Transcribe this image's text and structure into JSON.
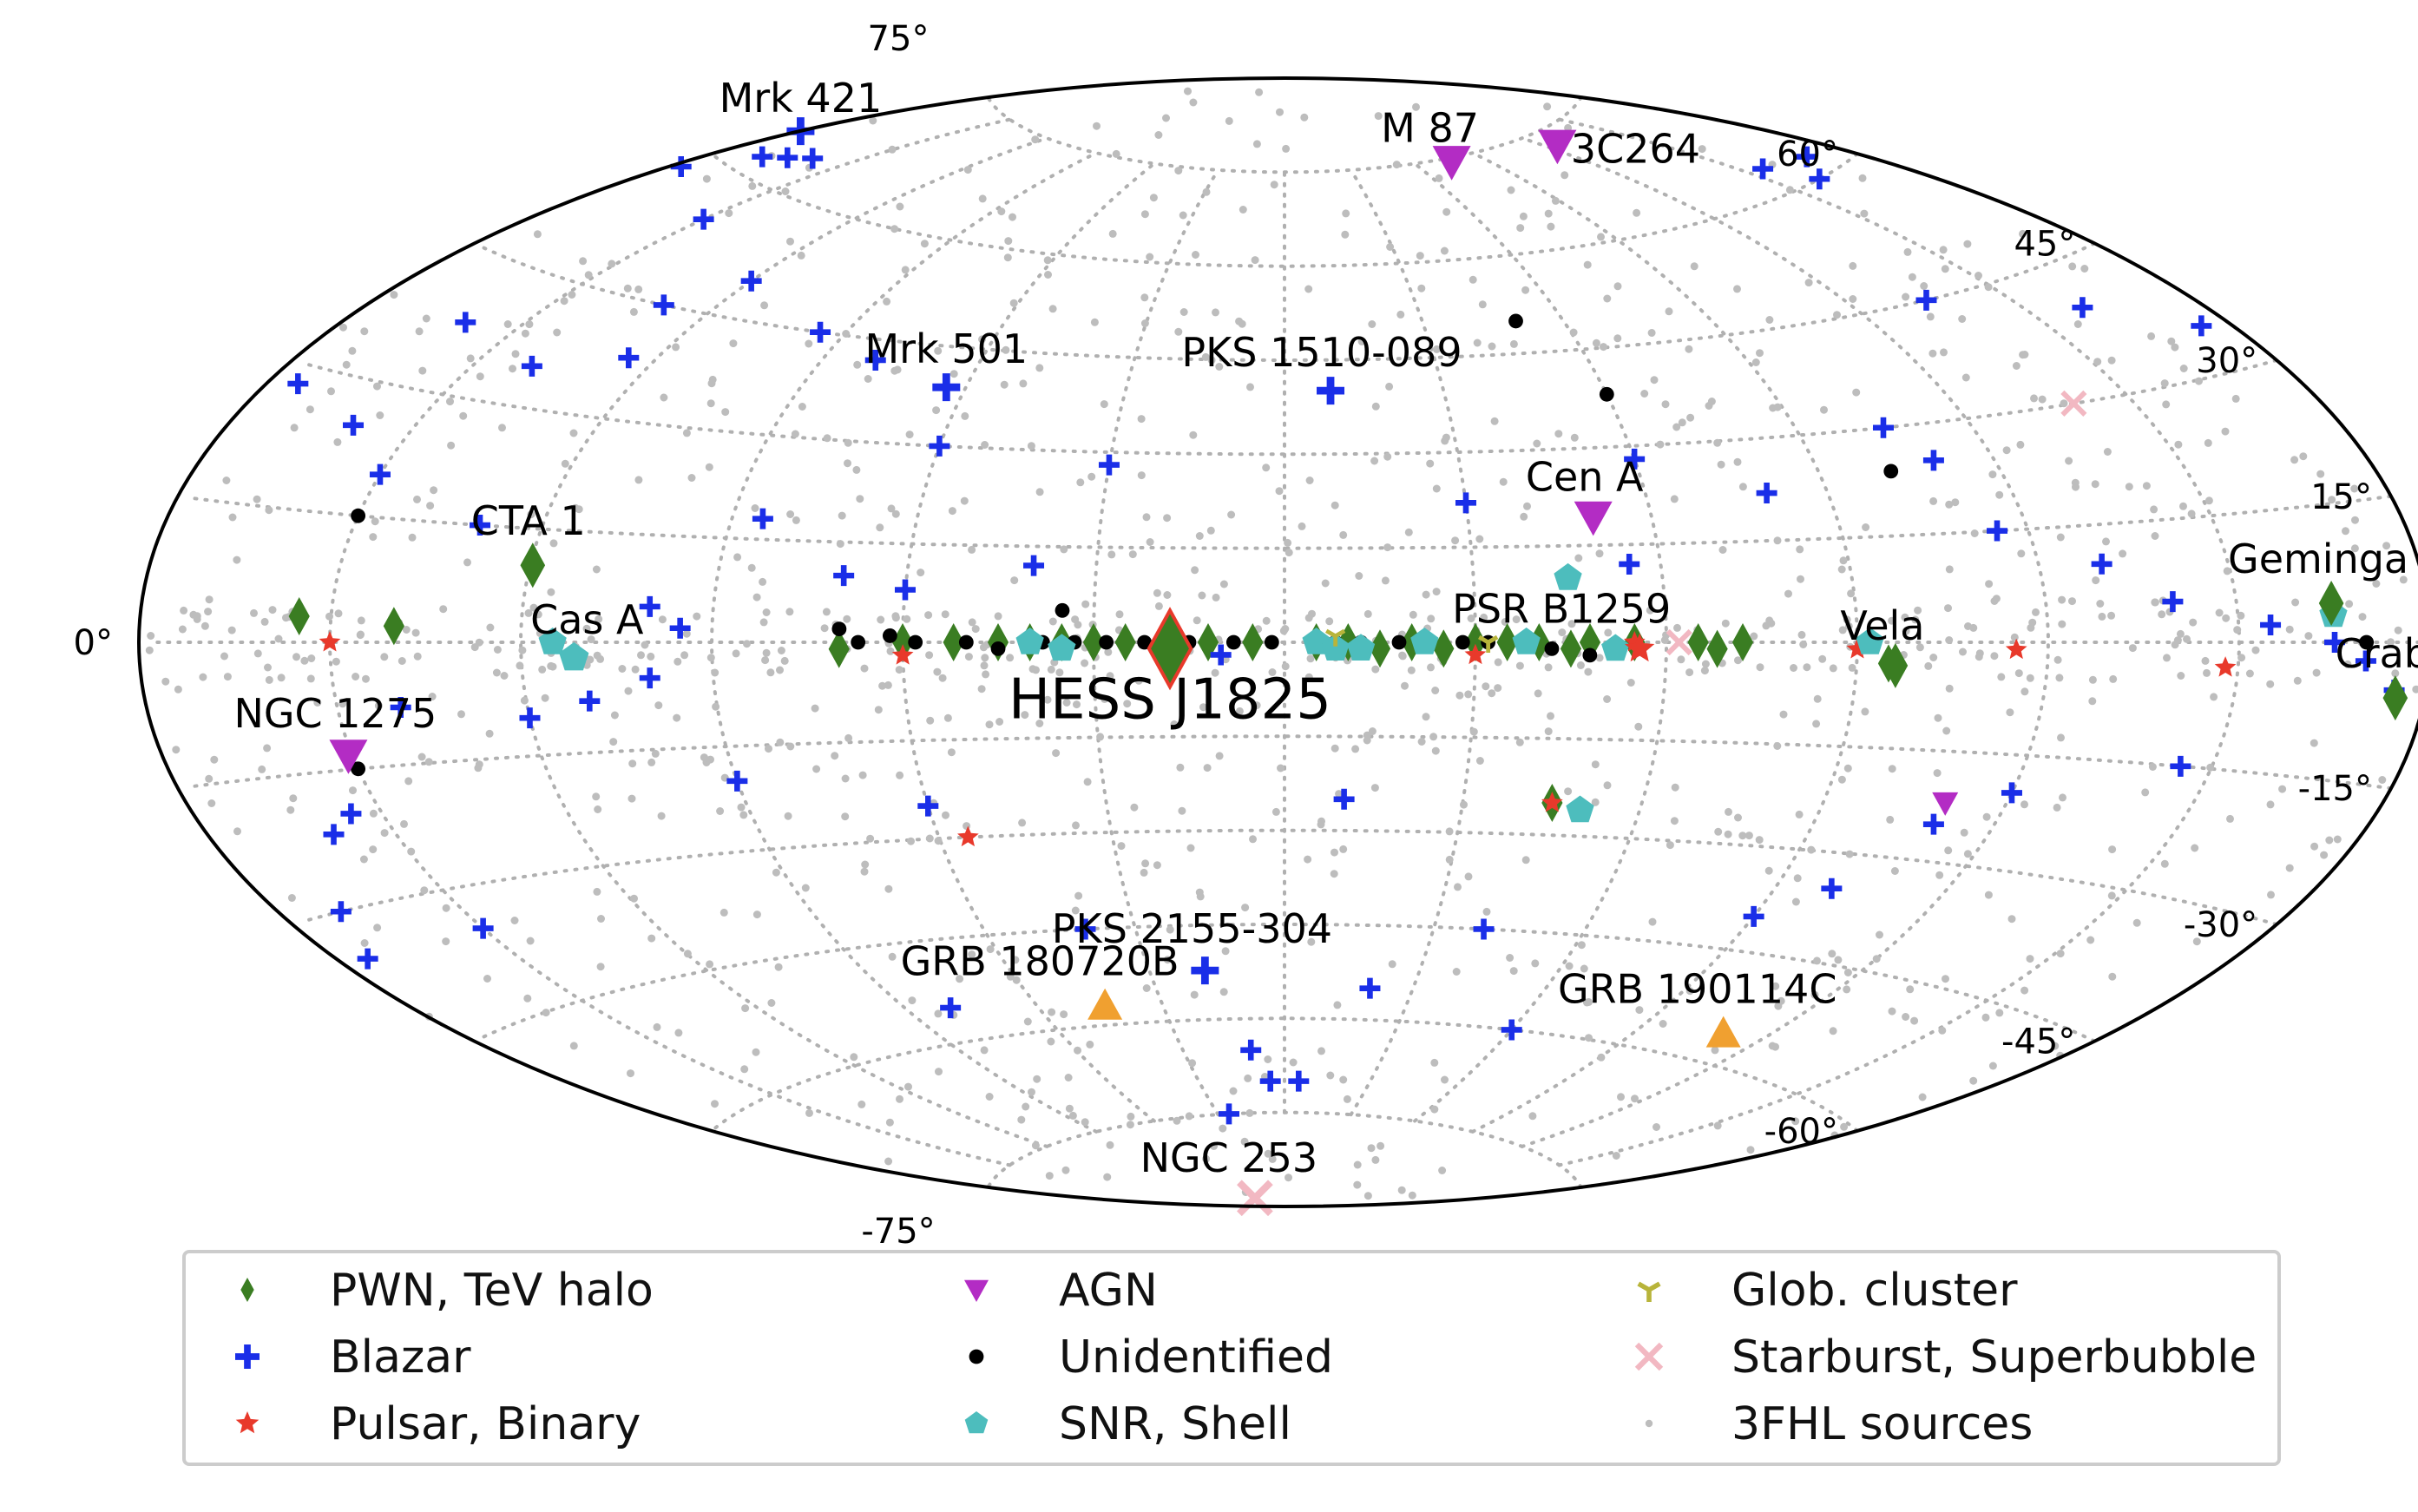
{
  "chart_data": {
    "type": "scatter",
    "projection": "aitoff",
    "frame": "galactic",
    "grid": true,
    "legend_position": "bottom",
    "lat_ticks": [
      {
        "lat": 75,
        "text": "75°"
      },
      {
        "lat": 60,
        "text": "60°"
      },
      {
        "lat": 45,
        "text": "45°"
      },
      {
        "lat": 30,
        "text": "30°"
      },
      {
        "lat": 15,
        "text": "15°"
      },
      {
        "lat": 0,
        "text": "0°"
      },
      {
        "lat": -15,
        "text": "-15°"
      },
      {
        "lat": -30,
        "text": "-30°"
      },
      {
        "lat": -45,
        "text": "-45°"
      },
      {
        "lat": -60,
        "text": "-60°"
      },
      {
        "lat": -75,
        "text": "-75°"
      }
    ],
    "categories": [
      {
        "id": "pwn",
        "name": "PWN, TeV halo",
        "marker": "diamond",
        "color": "#3a7d22"
      },
      {
        "id": "blazar",
        "name": "Blazar",
        "marker": "plus",
        "color": "#1a2ee8"
      },
      {
        "id": "pulsar",
        "name": "Pulsar, Binary",
        "marker": "star",
        "color": "#e8392b"
      },
      {
        "id": "agn",
        "name": "AGN",
        "marker": "triangle-down",
        "color": "#b32cc4"
      },
      {
        "id": "unid",
        "name": "Unidentified",
        "marker": "circle",
        "color": "#000000"
      },
      {
        "id": "snr",
        "name": "SNR, Shell",
        "marker": "pentagon",
        "color": "#4dbdbd"
      },
      {
        "id": "glob",
        "name": "Glob. cluster",
        "marker": "tri-down",
        "color": "#b8b43a"
      },
      {
        "id": "starburst",
        "name": "Starburst, Superbubble",
        "marker": "x",
        "color": "#f2b8c2"
      },
      {
        "id": "fhl",
        "name": "3FHL sources",
        "marker": "dot",
        "color": "#bdbdbd"
      },
      {
        "id": "grb",
        "name": "",
        "marker": "triangle-up",
        "color": "#f0a030"
      }
    ],
    "named_sources": [
      {
        "name": "HESS J1825",
        "cat": "pwn",
        "l": 18,
        "b": -1
      },
      {
        "name": "Mrk 421",
        "cat": "blazar",
        "l": 179.8,
        "b": 65
      },
      {
        "name": "M 87",
        "cat": "agn",
        "l": 283.8,
        "b": 74.5
      },
      {
        "name": "3C264",
        "cat": "agn",
        "l": 235.7,
        "b": 73
      },
      {
        "name": "Mrk 501",
        "cat": "blazar",
        "l": 63.6,
        "b": 38.9
      },
      {
        "name": "PKS 1510-089",
        "cat": "blazar",
        "l": 351.3,
        "b": 40.1
      },
      {
        "name": "Cen A",
        "cat": "agn",
        "l": 309.5,
        "b": 19.4
      },
      {
        "name": "CTA 1",
        "cat": "pwn",
        "l": 119.6,
        "b": 10.2
      },
      {
        "name": "Cas A",
        "cat": "snr",
        "l": 111.7,
        "b": -2.1
      },
      {
        "name": "PSR B1259",
        "cat": "pulsar",
        "l": 304.2,
        "b": -1
      },
      {
        "name": "Vela",
        "cat": "pwn",
        "l": 263.9,
        "b": -3.3
      },
      {
        "name": "Geminga",
        "cat": "pwn",
        "l": 195.1,
        "b": 4.3
      },
      {
        "name": "Crab",
        "cat": "pwn",
        "l": 184.6,
        "b": -5.8
      },
      {
        "name": "NGC 1275",
        "cat": "agn",
        "l": 150.6,
        "b": -13.3
      },
      {
        "name": "PKS 2155-304",
        "cat": "blazar",
        "l": 17.7,
        "b": -52.2
      },
      {
        "name": "GRB 180720B",
        "cat": "grb",
        "l": 44,
        "b": -57
      },
      {
        "name": "GRB 190114C",
        "cat": "grb",
        "l": 250,
        "b": -56
      },
      {
        "name": "NGC 253",
        "cat": "starburst",
        "l": 97.4,
        "b": -88
      }
    ],
    "points": {
      "pwn": [
        [
          70,
          -1
        ],
        [
          60,
          0
        ],
        [
          52,
          0
        ],
        [
          45,
          0
        ],
        [
          40,
          0
        ],
        [
          35,
          0
        ],
        [
          30,
          0
        ],
        [
          25,
          0
        ],
        [
          12,
          0
        ],
        [
          5,
          0
        ],
        [
          -5,
          0
        ],
        [
          -10,
          0
        ],
        [
          -15,
          -1
        ],
        [
          -20,
          0
        ],
        [
          -25,
          -1
        ],
        [
          -30,
          0
        ],
        [
          -35,
          0
        ],
        [
          -40,
          0
        ],
        [
          -45,
          -1
        ],
        [
          -48,
          0
        ],
        [
          -55,
          0
        ],
        [
          -65,
          0
        ],
        [
          -68,
          -1
        ],
        [
          -72,
          0
        ],
        [
          155,
          3
        ],
        [
          140,
          2
        ],
        [
          -95,
          -3
        ],
        [
          -45,
          -25
        ]
      ],
      "blazar": [
        [
          178,
          58
        ],
        [
          170,
          62
        ],
        [
          165,
          63
        ],
        [
          160,
          64
        ],
        [
          190,
          62
        ],
        [
          200,
          60
        ],
        [
          205,
          63
        ],
        [
          -135,
          45
        ],
        [
          -160,
          40
        ],
        [
          150,
          55
        ],
        [
          130,
          45
        ],
        [
          120,
          50
        ],
        [
          140,
          35
        ],
        [
          125,
          38
        ],
        [
          160,
          38
        ],
        [
          95,
          45
        ],
        [
          80,
          42
        ],
        [
          60,
          30
        ],
        [
          30,
          28
        ],
        [
          85,
          18
        ],
        [
          70,
          10
        ],
        [
          60,
          8
        ],
        [
          40,
          12
        ],
        [
          -30,
          22
        ],
        [
          -60,
          28
        ],
        [
          -80,
          22
        ],
        [
          -105,
          30
        ],
        [
          -110,
          25
        ],
        [
          -115,
          15
        ],
        [
          -130,
          10
        ],
        [
          -140,
          5
        ],
        [
          -155,
          2
        ],
        [
          -165,
          0
        ],
        [
          -170,
          -2
        ],
        [
          -175,
          -5
        ],
        [
          -145,
          -15
        ],
        [
          -120,
          -20
        ],
        [
          -110,
          -25
        ],
        [
          -100,
          -35
        ],
        [
          -90,
          -40
        ],
        [
          -60,
          -60
        ],
        [
          -40,
          -45
        ],
        [
          -20,
          -55
        ],
        [
          -10,
          -25
        ],
        [
          5,
          -70
        ],
        [
          10,
          -65
        ],
        [
          -5,
          -70
        ],
        [
          40,
          -45
        ],
        [
          60,
          -25
        ],
        [
          90,
          -20
        ],
        [
          100,
          -5
        ],
        [
          110,
          -8
        ],
        [
          120,
          -10
        ],
        [
          140,
          -8
        ],
        [
          160,
          -22
        ],
        [
          170,
          -30
        ],
        [
          175,
          -35
        ],
        [
          150,
          -35
        ],
        [
          155,
          -20
        ],
        [
          100,
          5
        ],
        [
          95,
          2
        ],
        [
          130,
          15
        ],
        [
          150,
          20
        ],
        [
          160,
          25
        ],
        [
          175,
          28
        ],
        [
          185,
          35
        ],
        [
          -55,
          12
        ],
        [
          80,
          -55
        ],
        [
          25,
          -75
        ],
        [
          10,
          -2
        ]
      ],
      "pulsar": [
        [
          150,
          0
        ],
        [
          55,
          -30
        ],
        [
          -30,
          -2
        ],
        [
          -55,
          0
        ],
        [
          -90,
          -1
        ],
        [
          -115,
          -1
        ],
        [
          -180,
          -1
        ],
        [
          -148,
          -3
        ],
        [
          60,
          -2
        ],
        [
          -45,
          -25
        ]
      ],
      "agn": [
        [
          -110,
          -22
        ]
      ],
      "unid": [
        [
          150,
          15
        ],
        [
          150,
          -15
        ],
        [
          35,
          5
        ],
        [
          70,
          2
        ],
        [
          67,
          0
        ],
        [
          62,
          1
        ],
        [
          58,
          0
        ],
        [
          50,
          0
        ],
        [
          45,
          -1
        ],
        [
          38,
          0
        ],
        [
          33,
          0
        ],
        [
          28,
          0
        ],
        [
          22,
          0
        ],
        [
          15,
          0
        ],
        [
          8,
          0
        ],
        [
          2,
          0
        ],
        [
          -8,
          0
        ],
        [
          -12,
          0
        ],
        [
          -18,
          0
        ],
        [
          -22,
          0
        ],
        [
          -28,
          0
        ],
        [
          -32,
          0
        ],
        [
          -38,
          0
        ],
        [
          -42,
          -1
        ],
        [
          -48,
          -2
        ],
        [
          -102,
          24
        ],
        [
          -170,
          0
        ],
        [
          -50,
          50
        ],
        [
          -60,
          38
        ]
      ],
      "snr": [
        [
          -45,
          10
        ],
        [
          -50,
          -26
        ],
        [
          -165,
          3
        ],
        [
          -92,
          0
        ],
        [
          40,
          0
        ],
        [
          35,
          -1
        ],
        [
          -5,
          0
        ],
        [
          -12,
          -1
        ],
        [
          -22,
          0
        ],
        [
          -38,
          0
        ],
        [
          -52,
          -1
        ],
        [
          115,
          0
        ],
        [
          -8,
          -1
        ]
      ],
      "glob": [
        [
          -8,
          1
        ],
        [
          -32,
          0
        ]
      ],
      "starburst": [
        [
          -140,
          30
        ],
        [
          -62,
          0
        ]
      ]
    },
    "fhl_count": 1100
  }
}
